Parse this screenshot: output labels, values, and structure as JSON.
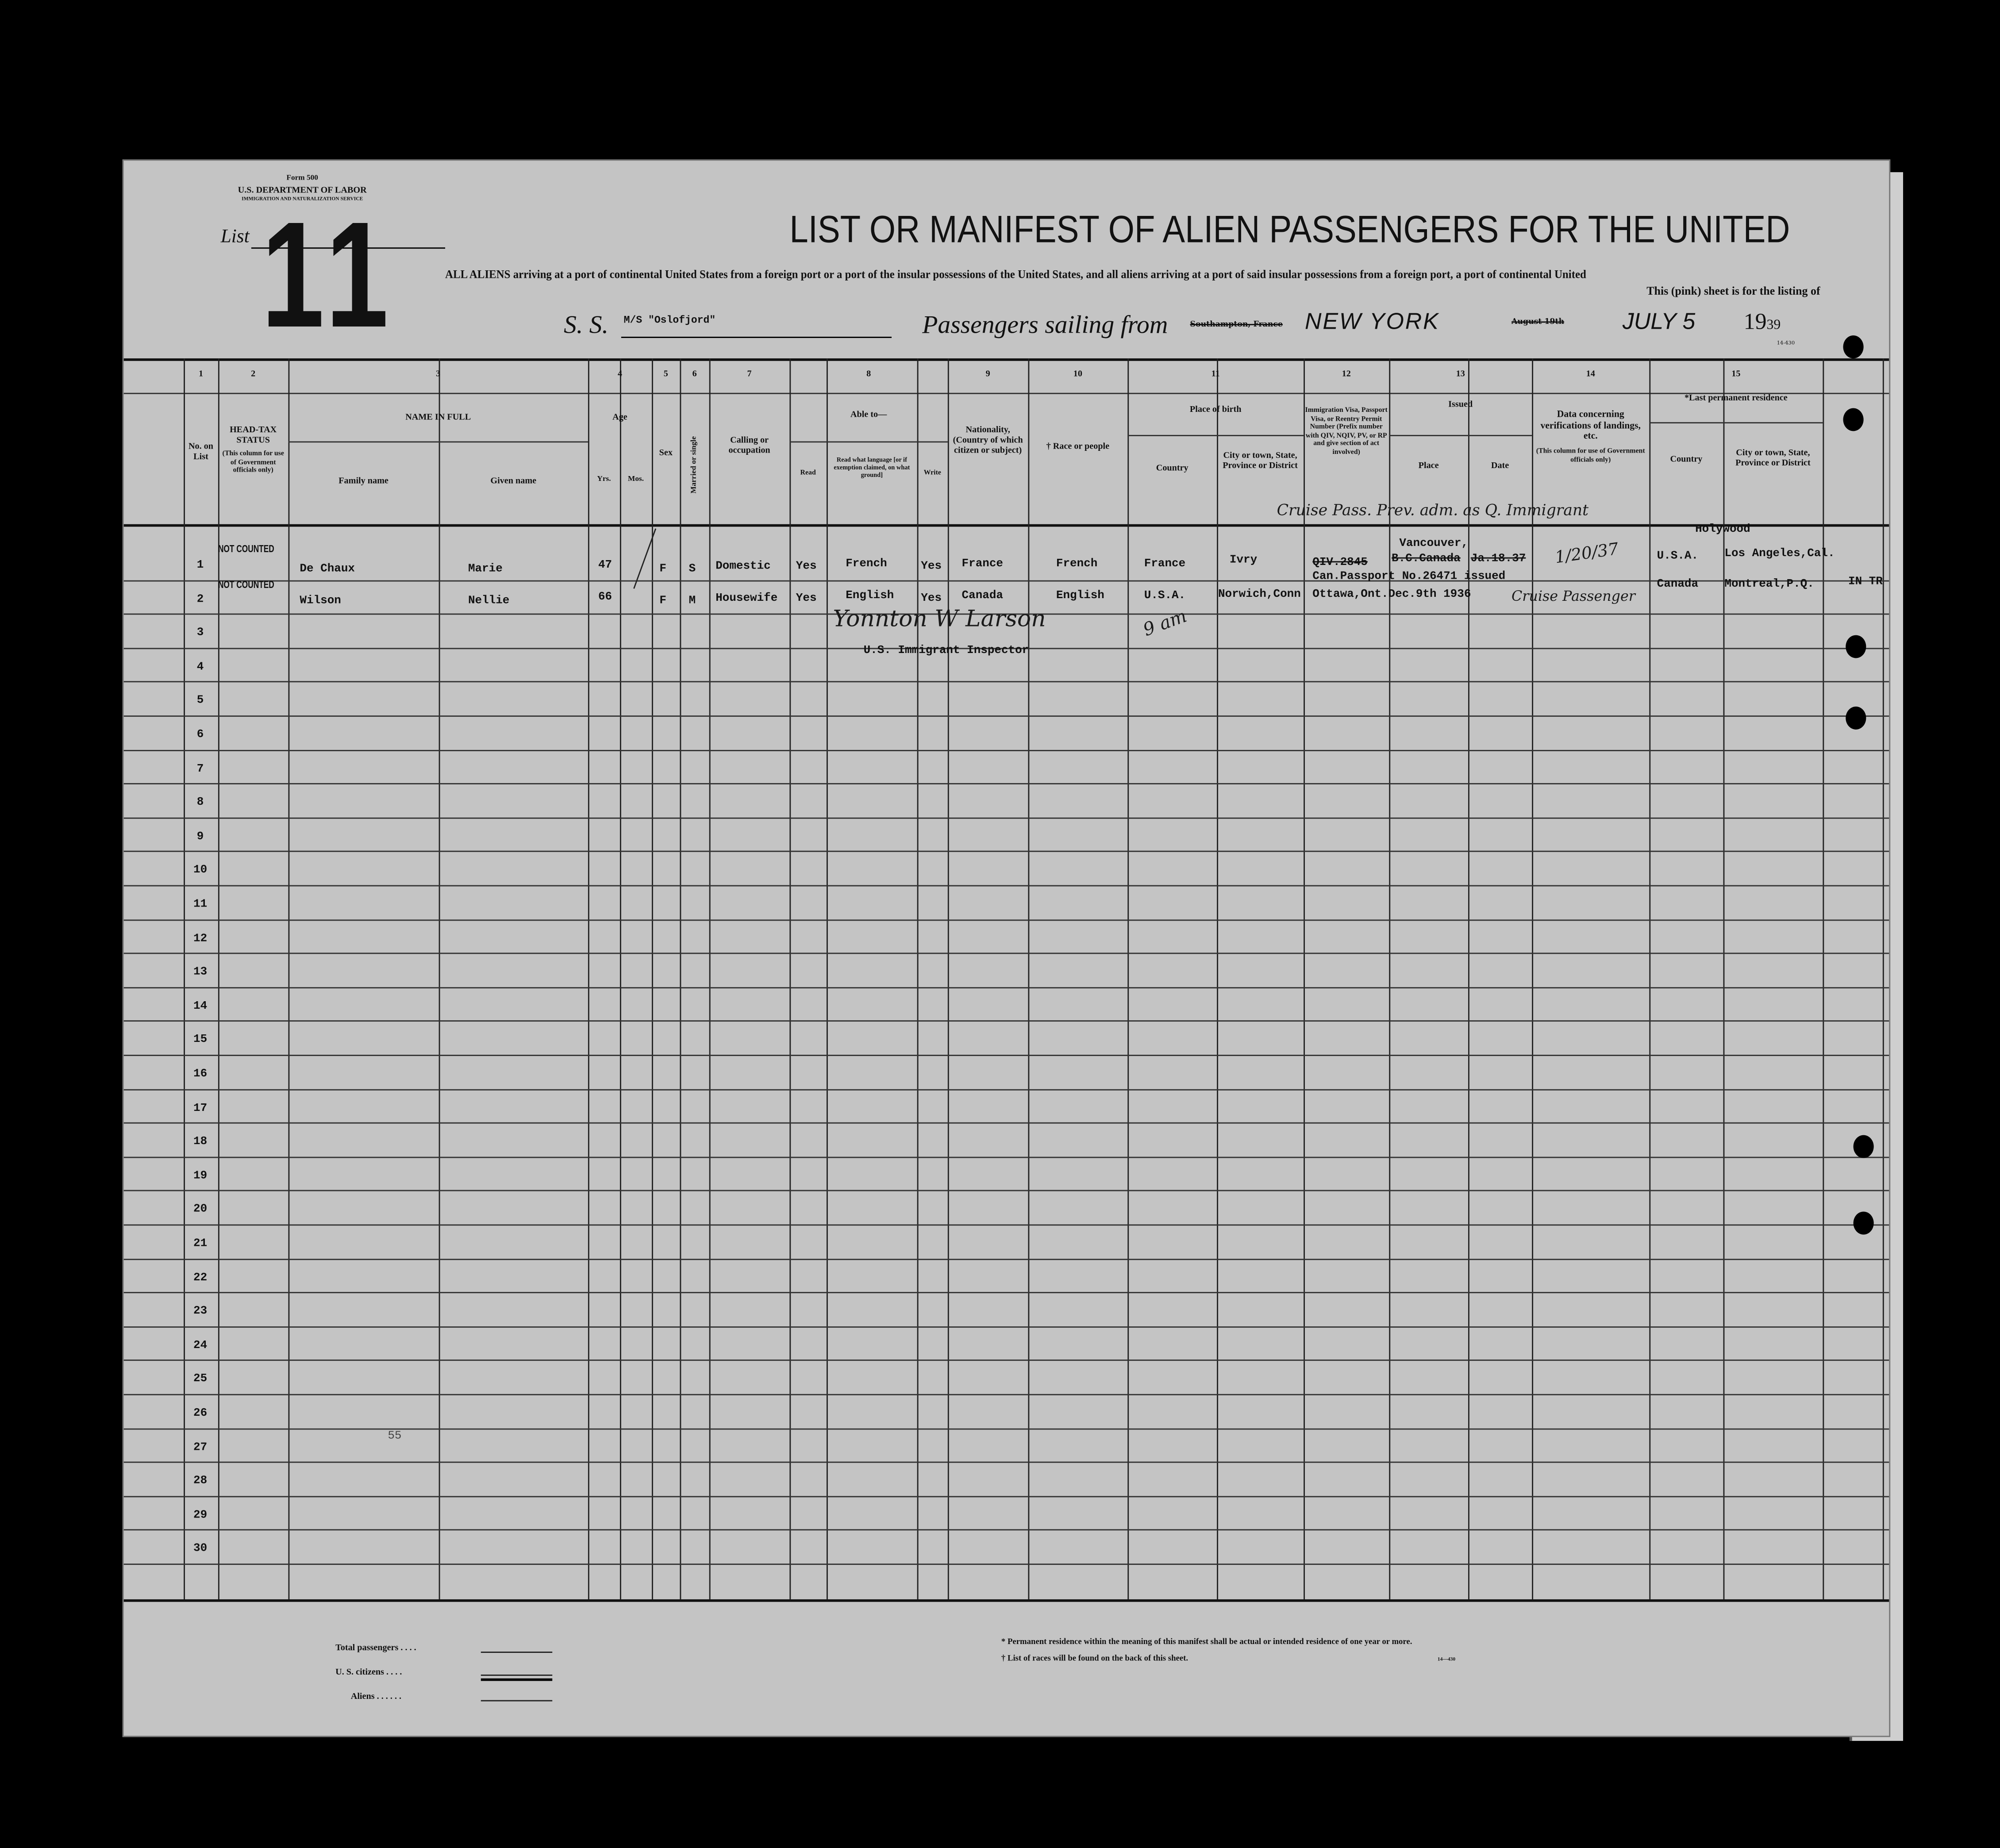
{
  "form": {
    "form_no": "Form 500",
    "department": "U.S. DEPARTMENT OF LABOR",
    "service": "IMMIGRATION AND NATURALIZATION SERVICE",
    "list_label": "List",
    "list_number": "11",
    "form_code": "14-430"
  },
  "title": "LIST OR MANIFEST OF ALIEN PASSENGERS FOR THE UNITED",
  "subtitle_line1": "ALL ALIENS arriving at a port of continental United States from a foreign port or a port of the insular possessions of the United States, and all aliens arriving at a port of said insular possessions from a foreign port, a port of continental United",
  "subtitle_line2": "This (pink) sheet is for the listing of",
  "voyage": {
    "ss_label": "S. S.",
    "ship": "M/S \"Oslofjord\"",
    "sailing_label": "Passengers sailing from",
    "struck_port": "Southampton, France",
    "port": "NEW YORK",
    "struck_date": "August 19th",
    "date": "JULY 5",
    "year_prefix": "19",
    "year_suffix": "39"
  },
  "column_numbers": [
    "1",
    "2",
    "3",
    "4",
    "5",
    "6",
    "7",
    "8",
    "9",
    "10",
    "11",
    "12",
    "13",
    "14",
    "15"
  ],
  "headers": {
    "no": "No. on List",
    "head_tax": "HEAD-TAX STATUS",
    "head_tax_note": "(This column for use of Government officials only)",
    "name": "NAME IN FULL",
    "family": "Family name",
    "given": "Given name",
    "age": "Age",
    "yrs": "Yrs.",
    "mos": "Mos.",
    "sex": "Sex",
    "married": "Married or single",
    "calling": "Calling or occupation",
    "able": "Able to—",
    "read": "Read",
    "read_lang": "Read what language [or if exemption claimed, on what ground]",
    "write": "Write",
    "nationality": "Nationality, (Country of which citizen or subject)",
    "race": "† Race or people",
    "birth": "Place of birth",
    "birth_country": "Country",
    "birth_city": "City or town, State, Province or District",
    "visa": "Immigration Visa, Passport Visa, or Reentry Permit Number (Prefix number with QIV, NQIV, PV, or RP and give section of act involved)",
    "issued": "Issued",
    "place": "Place",
    "date": "Date",
    "landing": "Data concerning verifications of landings, etc.",
    "landing_note": "(This column for use of Government officials only)",
    "residence": "*Last permanent residence",
    "res_country": "Country",
    "res_city": "City or town, State, Province or District"
  },
  "passengers": [
    {
      "no": "1",
      "head_tax": "NOT COUNTED",
      "family": "De Chaux",
      "given": "Marie",
      "yrs": "47",
      "sex": "F",
      "married": "S",
      "calling": "Domestic",
      "read": "Yes",
      "language": "French",
      "write": "Yes",
      "nationality": "France",
      "race": "French",
      "birth_country": "France",
      "birth_city": "Ivry",
      "visa": "QIV.2845",
      "issued_place_1": "Vancouver,",
      "issued_place_2": "B.C.Canada",
      "issued_date": "Ja.18.37",
      "landing": "1/20/37",
      "res_country": "U.S.A.",
      "res_city_1": "Holywood",
      "res_city_2": "Los Angeles,Cal."
    },
    {
      "no": "2",
      "head_tax": "NOT COUNTED",
      "family": "Wilson",
      "given": "Nellie",
      "yrs": "66",
      "sex": "F",
      "married": "M",
      "calling": "Housewife",
      "read": "Yes",
      "language": "English",
      "write": "Yes",
      "nationality": "Canada",
      "race": "English",
      "birth_country": "U.S.A.",
      "birth_city": "Norwich,Conn",
      "visa_1": "Can.Passport No.26471 issued",
      "visa_2": "Ottawa,Ont.Dec.9th 1936",
      "res_country": "Canada",
      "res_city": "Montreal,P.Q.",
      "extra": "IN TR"
    }
  ],
  "annotations": {
    "row1_handwritten": "Cruise Pass. Prev. adm. as Q. Immigrant",
    "row2_handwritten": "Cruise Passenger",
    "signature": "Yonnton W Larson",
    "time": "9 am",
    "inspector": "U.S. Immigrant Inspector",
    "stray_number": "55"
  },
  "row_numbers": [
    "1",
    "2",
    "3",
    "4",
    "5",
    "6",
    "7",
    "8",
    "9",
    "10",
    "11",
    "12",
    "13",
    "14",
    "15",
    "16",
    "17",
    "18",
    "19",
    "20",
    "21",
    "22",
    "23",
    "24",
    "25",
    "26",
    "27",
    "28",
    "29",
    "30"
  ],
  "footer": {
    "total": "Total passengers . . . .",
    "citizens": "U. S. citizens . . . .",
    "aliens": "Aliens . . . . . .",
    "note1": "* Permanent residence within the meaning of this manifest shall be actual or intended residence of one year or more.",
    "note2": "† List of races will be found on the back of this sheet.",
    "code": "14—430"
  }
}
